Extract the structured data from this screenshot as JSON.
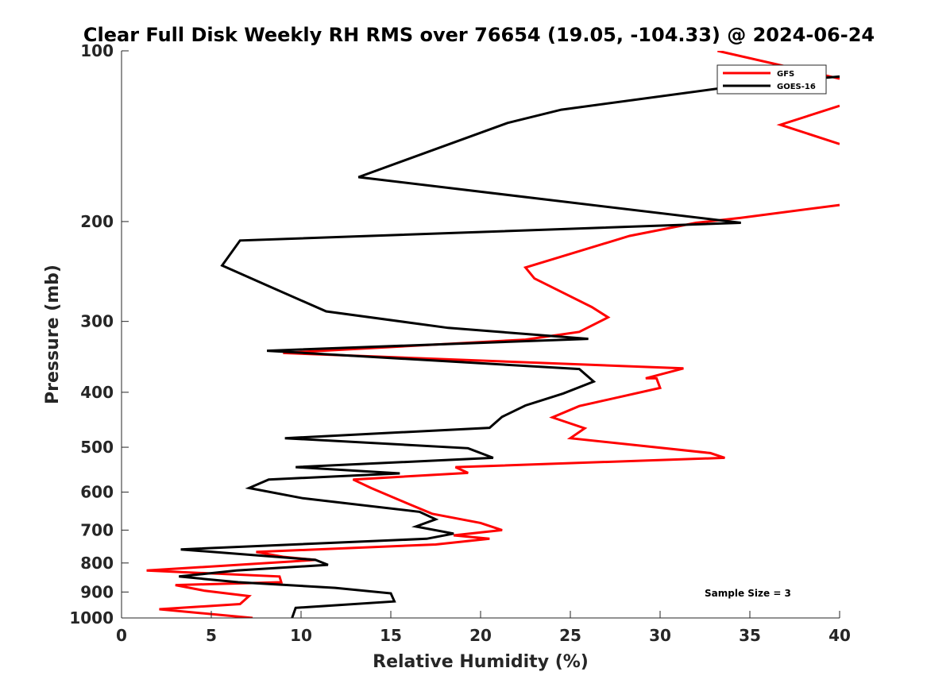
{
  "chart_data": {
    "type": "line",
    "title": "Clear Full Disk Weekly RH RMS over 76654 (19.05, -104.33) @ 2024-06-24",
    "xlabel": "Relative Humidity (%)",
    "ylabel": "Pressure (mb)",
    "xlim": [
      0,
      40
    ],
    "ylim": [
      100,
      1000
    ],
    "yscale": "log",
    "y_reversed": true,
    "xticks": [
      "0",
      "5",
      "10",
      "15",
      "20",
      "25",
      "30",
      "35",
      "40"
    ],
    "yticks": [
      "100",
      "200",
      "300",
      "400",
      "500",
      "600",
      "700",
      "800",
      "900",
      "1000"
    ],
    "legend": {
      "location": "top-right",
      "entries": [
        "GFS",
        "GOES-16"
      ]
    },
    "annotation": "Sample Size = 3",
    "series": [
      {
        "name": "GFS",
        "color": "#ff0000",
        "x": [
          33.2,
          40,
          null,
          40,
          36.7,
          40,
          null,
          40,
          34.5,
          32,
          28.3,
          22.5,
          23.0,
          26.2,
          27.1,
          25.5,
          22.5,
          9.0,
          31.3,
          29.2,
          29.8,
          30.0,
          25.5,
          24.0,
          25.8,
          25.0,
          32.8,
          33.6,
          18.6,
          19.3,
          12.9,
          13.9,
          15.5,
          17.3,
          20.0,
          21.2,
          18.5,
          20.5,
          17.5,
          7.5,
          9.0,
          10.8,
          9.5,
          1.4,
          8.8,
          8.9,
          3.0,
          4.6,
          7.1,
          6.6,
          2.1,
          7.3
        ],
        "y": [
          100,
          112,
          null,
          125,
          135,
          146,
          null,
          187,
          197,
          201,
          212,
          241,
          252,
          283,
          295,
          313,
          323,
          341,
          363,
          378,
          378,
          393,
          423,
          443,
          463,
          482,
          512,
          522,
          542,
          555,
          570,
          590,
          620,
          655,
          680,
          700,
          715,
          725,
          742,
          765,
          780,
          790,
          795,
          825,
          845,
          865,
          875,
          895,
          915,
          945,
          965,
          1000
        ]
      },
      {
        "name": "GOES-16",
        "color": "#000000",
        "x": [
          40,
          35.5,
          24.5,
          21.5,
          13.2,
          34.5,
          6.6,
          5.6,
          8.2,
          11.4,
          18.2,
          26.0,
          8.1,
          25.5,
          26.3,
          24.6,
          22.5,
          21.2,
          20.5,
          9.1,
          19.3,
          20.7,
          9.7,
          15.5,
          8.2,
          7.1,
          10.1,
          16.6,
          17.5,
          16.4,
          18.5,
          17.0,
          3.3,
          10.8,
          11.5,
          6.4,
          3.2,
          6.5,
          11.9,
          15.0,
          15.2,
          9.7,
          9.5
        ],
        "y": [
          111,
          114,
          127,
          134,
          167,
          201,
          216,
          239,
          260,
          288,
          308,
          322,
          338,
          364,
          383,
          402,
          422,
          442,
          462,
          482,
          502,
          522,
          542,
          556,
          570,
          590,
          615,
          650,
          670,
          690,
          710,
          725,
          757,
          790,
          806,
          825,
          845,
          865,
          885,
          905,
          935,
          960,
          1000
        ]
      }
    ]
  }
}
